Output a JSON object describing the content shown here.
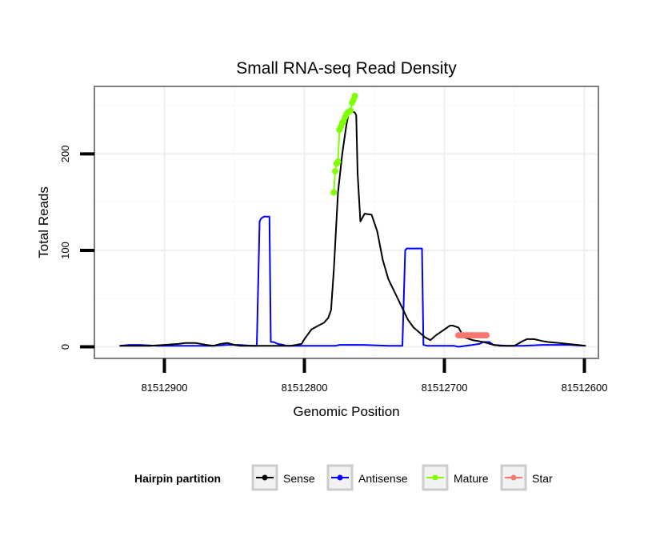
{
  "chart_data": {
    "type": "line",
    "title": "Small RNA-seq Read Density",
    "xlabel": "Genomic Position",
    "ylabel": "Total Reads",
    "xlim": [
      81512950,
      81512590
    ],
    "ylim": [
      -12,
      270
    ],
    "x_reversed": true,
    "x_ticks": [
      81512900,
      81512800,
      81512700,
      81512600
    ],
    "x_tick_labels": [
      "81512900",
      "81512800",
      "81512700",
      "81512600"
    ],
    "y_ticks": [
      0,
      100,
      200
    ],
    "y_tick_labels": [
      "0",
      "100",
      "200"
    ],
    "grid": true,
    "legend": {
      "title": "Hairpin partition",
      "position": "bottom",
      "entries": [
        {
          "name": "Sense",
          "color": "#000000"
        },
        {
          "name": "Antisense",
          "color": "#0000ff"
        },
        {
          "name": "Mature",
          "color": "#7fff00"
        },
        {
          "name": "Star",
          "color": "#f8766d"
        }
      ]
    },
    "series": [
      {
        "name": "Sense",
        "color": "#000000",
        "x": [
          81512932,
          81512910,
          81512900,
          81512890,
          81512885,
          81512878,
          81512870,
          81512865,
          81512860,
          81512855,
          81512850,
          81512846,
          81512838,
          81512832,
          81512824,
          81512818,
          81512810,
          81512806,
          81512802,
          81512800,
          81512795,
          81512790,
          81512786,
          81512783,
          81512781,
          81512779,
          81512776,
          81512773,
          81512770,
          81512768,
          81512764,
          81512763,
          81512762,
          81512760,
          81512757,
          81512752,
          81512748,
          81512744,
          81512740,
          81512735,
          81512730,
          81512726,
          81512722,
          81512718,
          81512714,
          81512710,
          81512706,
          81512703,
          81512700,
          81512698,
          81512696,
          81512694,
          81512690,
          81512686,
          81512680,
          81512672,
          81512665,
          81512660,
          81512650,
          81512644,
          81512641,
          81512636,
          81512630,
          81512626,
          81512618,
          81512612,
          81512605,
          81512599
        ],
        "values": [
          1,
          1,
          2,
          3,
          4,
          4,
          2,
          1,
          3,
          4,
          2,
          1,
          1,
          1,
          1,
          1,
          1,
          2,
          3,
          8,
          18,
          22,
          25,
          30,
          38,
          80,
          160,
          200,
          230,
          245,
          243,
          240,
          180,
          130,
          138,
          137,
          120,
          90,
          70,
          55,
          40,
          28,
          20,
          15,
          10,
          7,
          12,
          15,
          18,
          20,
          22,
          22,
          20,
          10,
          7,
          5,
          2,
          1,
          1,
          6,
          8,
          8,
          6,
          5,
          4,
          3,
          2,
          1
        ]
      },
      {
        "name": "Antisense",
        "color": "#0000ff",
        "x": [
          81512932,
          81512925,
          81512918,
          81512905,
          81512890,
          81512875,
          81512866,
          81512855,
          81512847,
          81512837,
          81512834,
          81512832,
          81512831,
          81512829,
          81512825,
          81512824,
          81512822,
          81512819,
          81512815,
          81512813,
          81512790,
          81512778,
          81512775,
          81512758,
          81512740,
          81512730,
          81512728,
          81512727,
          81512720,
          81512716,
          81512715,
          81512712,
          81512700,
          81512693,
          81512690,
          81512680,
          81512675,
          81512672,
          81512668,
          81512665,
          81512655,
          81512650,
          81512644,
          81512630,
          81512610,
          81512600
        ],
        "values": [
          1,
          2,
          2,
          1,
          1,
          1,
          1,
          2,
          2,
          1,
          1,
          130,
          133,
          135,
          135,
          5,
          5,
          3,
          2,
          1,
          1,
          1,
          2,
          2,
          1,
          1,
          100,
          102,
          102,
          102,
          2,
          1,
          1,
          1,
          0,
          2,
          3,
          5,
          5,
          2,
          1,
          1,
          1,
          2,
          2,
          1
        ]
      },
      {
        "name": "Mature",
        "color": "#7fff00",
        "x": [
          81512779,
          81512778,
          81512777,
          81512776,
          81512775,
          81512774,
          81512773,
          81512772,
          81512771,
          81512770,
          81512769,
          81512768,
          81512767,
          81512766,
          81512765,
          81512764
        ],
        "values": [
          160,
          182,
          190,
          192,
          225,
          228,
          232,
          234,
          238,
          241,
          243,
          244,
          245,
          253,
          256,
          260
        ]
      },
      {
        "name": "Star",
        "color": "#f8766d",
        "x": [
          81512690,
          81512688,
          81512686,
          81512684,
          81512682,
          81512680,
          81512678,
          81512676,
          81512674,
          81512672,
          81512670
        ],
        "values": [
          12,
          12,
          12,
          12,
          12,
          12,
          12,
          12,
          12,
          12,
          12
        ]
      }
    ]
  }
}
